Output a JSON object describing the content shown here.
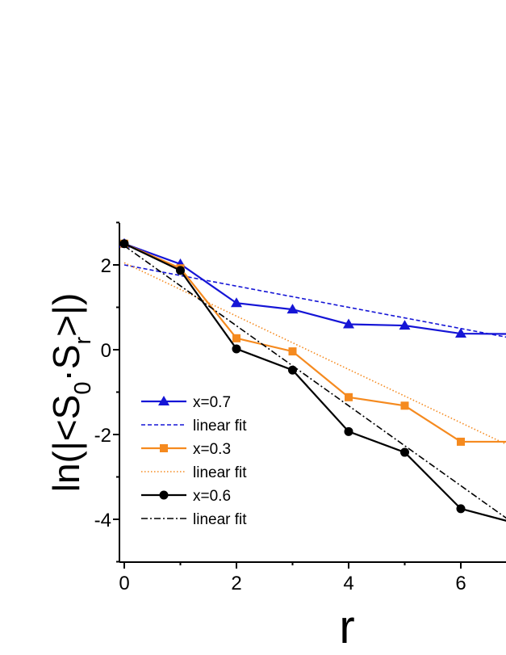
{
  "chart_data": {
    "type": "line",
    "xlabel": "r",
    "ylabel": {
      "text": "ln(|<S",
      "sub1": "0",
      "mid": "·S",
      "sub2": "r",
      "end": ">|)"
    },
    "xlim": [
      -0.1,
      6.8
    ],
    "ylim": [
      -5,
      3
    ],
    "xticks": [
      0,
      2,
      4,
      6
    ],
    "xtick_labels": [
      "0",
      "2",
      "4",
      "6"
    ],
    "yticks": [
      -4,
      -2,
      0,
      2
    ],
    "ytick_labels": [
      "-4",
      "-2",
      "0",
      "2"
    ],
    "grid": false,
    "legend_position": "bottom-left",
    "series": [
      {
        "name": "x=0.7",
        "marker": "triangle",
        "color": "#1515d6",
        "style": "solid",
        "x": [
          0,
          1,
          2,
          3,
          4,
          5,
          6,
          7
        ],
        "y": [
          2.5,
          2.02,
          1.1,
          0.95,
          0.6,
          0.57,
          0.38,
          0.37
        ]
      },
      {
        "name": "linear fit",
        "marker": "none",
        "color": "#1515d6",
        "style": "dashed",
        "x": [
          0,
          7
        ],
        "y": [
          2.0,
          0.25
        ]
      },
      {
        "name": "x=0.3",
        "marker": "square",
        "color": "#f58a1f",
        "style": "solid",
        "x": [
          0,
          1,
          2,
          3,
          4,
          5,
          6,
          7
        ],
        "y": [
          2.5,
          1.92,
          0.27,
          -0.04,
          -1.12,
          -1.32,
          -2.17,
          -2.17
        ]
      },
      {
        "name": "linear fit",
        "marker": "none",
        "color": "#f58a1f",
        "style": "dotted",
        "x": [
          0,
          7
        ],
        "y": [
          2.05,
          -2.35
        ]
      },
      {
        "name": "x=0.6",
        "marker": "circle",
        "color": "#000000",
        "style": "solid",
        "x": [
          0,
          1,
          2,
          3,
          4,
          5,
          6,
          7
        ],
        "y": [
          2.5,
          1.87,
          0.02,
          -0.48,
          -1.93,
          -2.42,
          -3.75,
          -4.1
        ]
      },
      {
        "name": "linear fit",
        "marker": "none",
        "color": "#000000",
        "style": "dashdot",
        "x": [
          0,
          7
        ],
        "y": [
          2.45,
          -4.15
        ]
      }
    ]
  }
}
